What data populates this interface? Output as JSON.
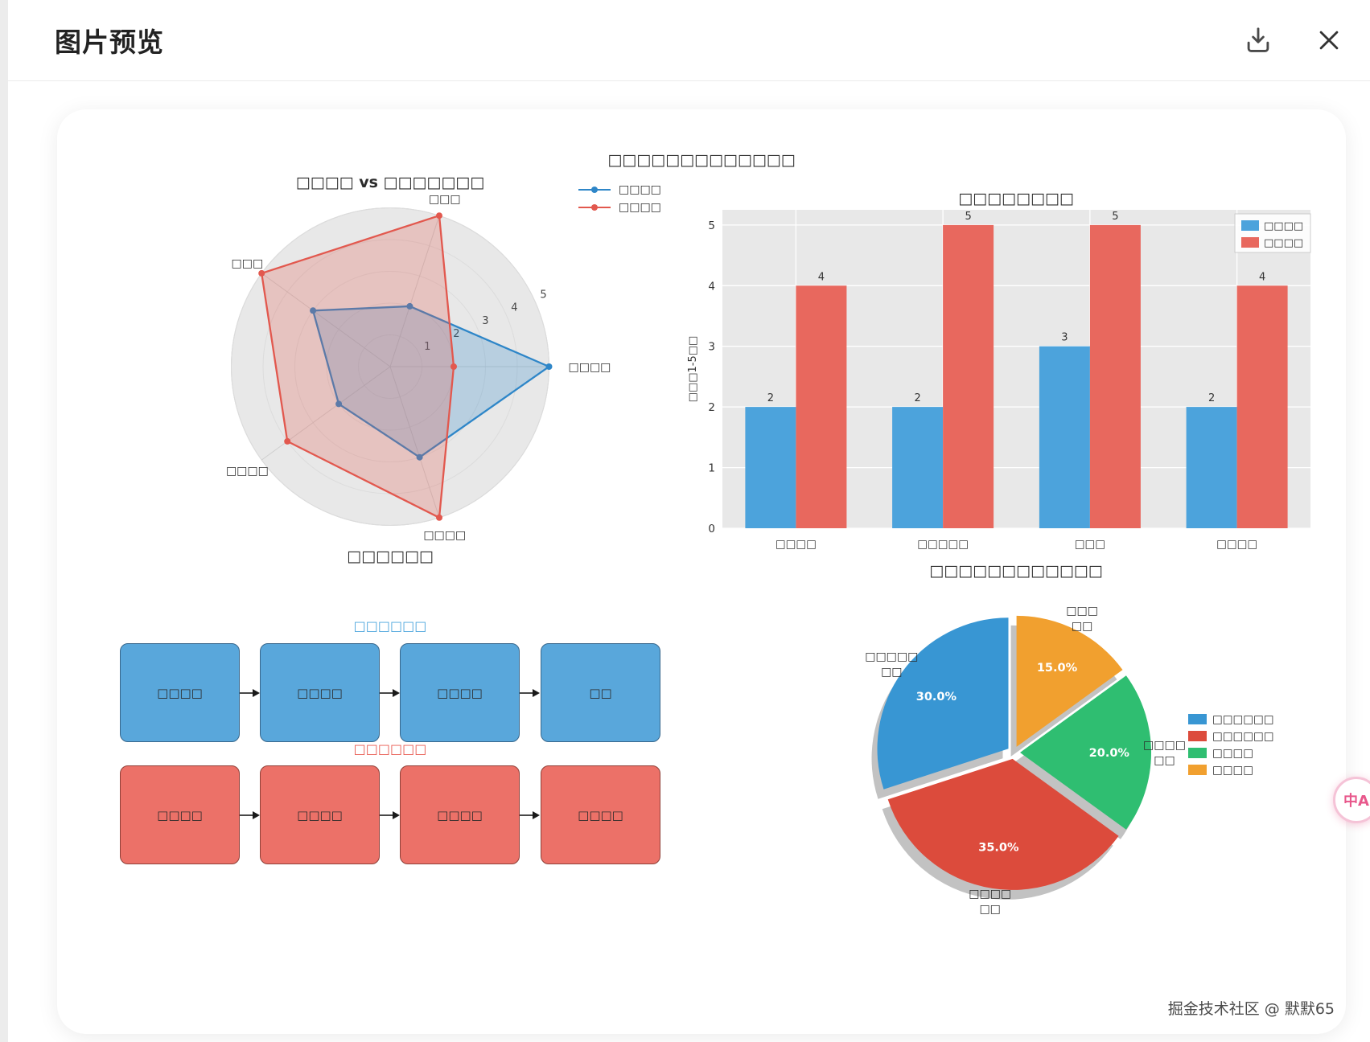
{
  "header": {
    "title": "图片预览",
    "icons": {
      "download": "download-icon",
      "close": "close-icon"
    }
  },
  "overall_title": "□□□□□□□□□□□□□",
  "watermark": "掘金技术社区 @ 默默65",
  "translate_badge": "中A",
  "colors": {
    "radar_blue": "#2E86C8",
    "radar_red": "#E2584E",
    "bar_blue": "#4CA3DC",
    "bar_red": "#E8685E",
    "pie_blue": "#3896D3",
    "pie_red": "#DC4B3C",
    "pie_green": "#2FBE71",
    "pie_orange": "#F1A02F",
    "plot_background": "#E8E8E8"
  },
  "chart_data": [
    {
      "type": "radar",
      "title": "□□□□ vs □□□□□□□",
      "axes": [
        "□□□□",
        "□□□",
        "□□□",
        "□□□□",
        "□□□□"
      ],
      "rlim": [
        0,
        5
      ],
      "rticks": [
        1,
        2,
        3,
        4,
        5
      ],
      "series": [
        {
          "name": "□□□□",
          "color": "#2E86C8",
          "values": [
            5,
            2,
            3,
            2,
            3
          ]
        },
        {
          "name": "□□□□",
          "color": "#E2584E",
          "values": [
            2,
            5,
            5,
            4,
            5
          ]
        }
      ],
      "legend_position": "top-right"
    },
    {
      "type": "bar",
      "title": "□□□□□□□□",
      "categories": [
        "□□□□",
        "□□□□□",
        "□□□",
        "□□□□"
      ],
      "series": [
        {
          "name": "□□□□",
          "color": "#4CA3DC",
          "values": [
            2,
            2,
            3,
            2
          ]
        },
        {
          "name": "□□□□",
          "color": "#E8685E",
          "values": [
            4,
            5,
            5,
            4
          ]
        }
      ],
      "ylabel": "□□□1-5□□",
      "ylim": [
        0,
        5.25
      ],
      "yticks": [
        0,
        1,
        2,
        3,
        4,
        5
      ],
      "legend_position": "upper right",
      "grid": true,
      "plot_bg": "#E8E8E8"
    },
    {
      "type": "flow",
      "title": "□□□□□□",
      "rows": [
        {
          "label": "□□□□□□",
          "label_color": "#4AA4DC",
          "box_color": "#59A7DB",
          "border_color": "#38678C",
          "steps": [
            "□□□□",
            "□□□□",
            "□□□□",
            "□□"
          ]
        },
        {
          "label": "□□□□□□",
          "label_color": "#E8584E",
          "box_color": "#EC7168",
          "border_color": "#8F4038",
          "steps": [
            "□□□□",
            "□□□□",
            "□□□□",
            "□□□□"
          ]
        }
      ]
    },
    {
      "type": "pie",
      "title": "□□□□□□□□□□□□",
      "slices": [
        {
          "label": "□□□□□\n□□",
          "legend": "□□□□□□",
          "value": 30.0,
          "pct_label": "30.0%",
          "color": "#3896D3"
        },
        {
          "label": "□□□□\n□□",
          "legend": "□□□□□□",
          "value": 35.0,
          "pct_label": "35.0%",
          "color": "#DC4B3C"
        },
        {
          "label": "□□□□\n□□",
          "legend": "□□□□",
          "value": 20.0,
          "pct_label": "20.0%",
          "color": "#2FBE71"
        },
        {
          "label": "□□□\n□□",
          "legend": "□□□□",
          "value": 15.0,
          "pct_label": "15.0%",
          "color": "#F1A02F"
        }
      ],
      "start_angle": 90,
      "counterclock": true,
      "shadow": true,
      "explode": 8,
      "legend_position": "right"
    }
  ]
}
